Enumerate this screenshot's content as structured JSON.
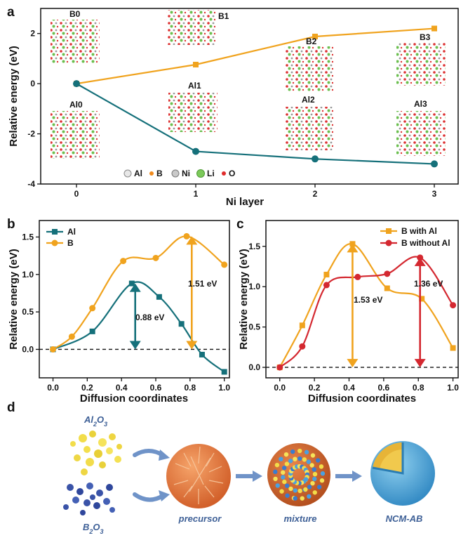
{
  "colors": {
    "orange": "#f0a31e",
    "teal": "#15707a",
    "red": "#d42830",
    "blue": "#3d5f96"
  },
  "panel_labels": {
    "a": "a",
    "b": "b",
    "c": "c",
    "d": "d"
  },
  "chart_data": [
    {
      "id": "a",
      "type": "line",
      "xlabel": "Ni layer",
      "ylabel": "Relative energy (eV)",
      "xlim": [
        -0.3,
        3.2
      ],
      "ylim": [
        -4,
        3
      ],
      "xticks": [
        "0",
        "1",
        "2",
        "3"
      ],
      "yticks": [
        "-4",
        "-2",
        "0",
        "2"
      ],
      "series": [
        {
          "name": "B",
          "color": "#f0a31e",
          "marker": "square",
          "x": [
            0,
            1,
            2,
            3
          ],
          "y": [
            0,
            0.76,
            1.88,
            2.2
          ]
        },
        {
          "name": "Al",
          "color": "#15707a",
          "marker": "circle",
          "x": [
            0,
            1,
            2,
            3
          ],
          "y": [
            0,
            -2.7,
            -3.0,
            -3.2
          ]
        }
      ],
      "structure_labels": [
        "B0",
        "B1",
        "B2",
        "B3",
        "Al0",
        "Al1",
        "Al2",
        "Al3"
      ],
      "element_legend": [
        "Al",
        "B",
        "Ni",
        "Li",
        "O"
      ]
    },
    {
      "id": "b",
      "type": "line",
      "xlabel": "Diffusion coordinates",
      "ylabel": "Relative energy (eV)",
      "xlim": [
        -0.08,
        1.03
      ],
      "ylim": [
        -0.38,
        1.72
      ],
      "xticks": [
        "0.0",
        "0.2",
        "0.4",
        "0.6",
        "0.8",
        "1.0"
      ],
      "yticks": [
        "0.0",
        "0.5",
        "1.0",
        "1.5"
      ],
      "series": [
        {
          "name": "Al",
          "color": "#15707a",
          "marker": "square",
          "x": [
            0,
            0.23,
            0.46,
            0.62,
            0.75,
            0.87,
            1.0
          ],
          "y": [
            0,
            0.24,
            0.88,
            0.7,
            0.34,
            -0.07,
            -0.3
          ]
        },
        {
          "name": "B",
          "color": "#f0a31e",
          "marker": "circle",
          "x": [
            0,
            0.11,
            0.23,
            0.41,
            0.6,
            0.78,
            1.0
          ],
          "y": [
            0,
            0.17,
            0.55,
            1.18,
            1.22,
            1.51,
            1.13
          ]
        }
      ],
      "annotations": [
        "0.88 eV",
        "1.51 eV"
      ]
    },
    {
      "id": "c",
      "type": "line",
      "xlabel": "Diffusion coordinates",
      "ylabel": "Relative energy (eV)",
      "xlim": [
        -0.08,
        1.03
      ],
      "ylim": [
        -0.13,
        1.82
      ],
      "xticks": [
        "0.0",
        "0.2",
        "0.4",
        "0.6",
        "0.8",
        "1.0"
      ],
      "yticks": [
        "0.0",
        "0.5",
        "1.0",
        "1.5"
      ],
      "series": [
        {
          "name": "B with Al",
          "color": "#f0a31e",
          "marker": "square",
          "x": [
            0,
            0.13,
            0.27,
            0.42,
            0.62,
            0.82,
            1.0
          ],
          "y": [
            0,
            0.52,
            1.15,
            1.53,
            0.98,
            0.85,
            0.24
          ]
        },
        {
          "name": "B without Al",
          "color": "#d42830",
          "marker": "circle",
          "x": [
            0,
            0.13,
            0.27,
            0.45,
            0.62,
            0.81,
            1.0
          ],
          "y": [
            0,
            0.26,
            1.02,
            1.12,
            1.16,
            1.36,
            0.77
          ]
        }
      ],
      "annotations": [
        "1.53 eV",
        "1.36 eV"
      ]
    }
  ],
  "schematic": {
    "al2o3_label": "Al2O3",
    "b2o3_label": "B2O3",
    "precursor_label": "precursor",
    "mixture_label": "mixture",
    "product_label": "NCM-AB"
  }
}
